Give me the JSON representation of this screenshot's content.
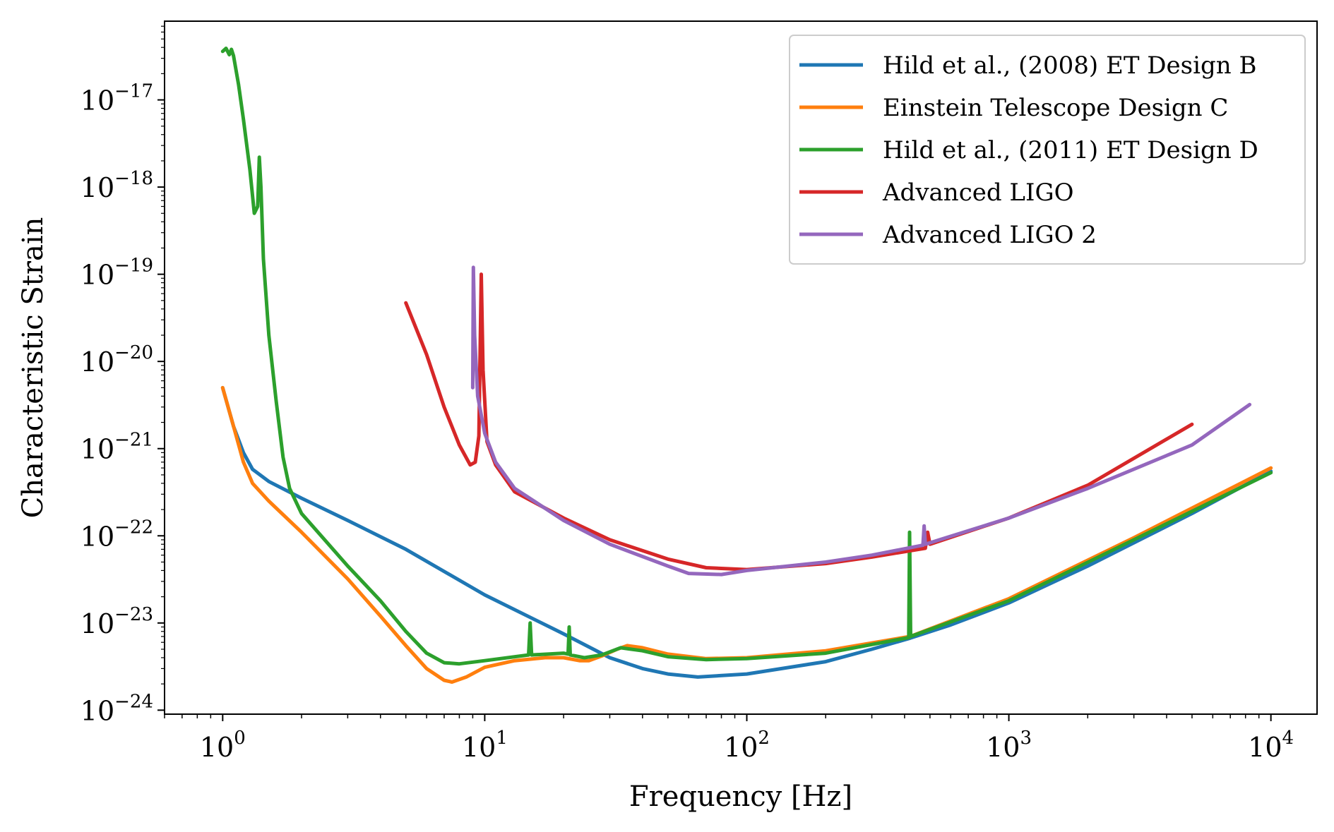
{
  "chart_data": {
    "type": "line",
    "title": "",
    "xlabel": "Frequency [Hz]",
    "ylabel": "Characteristic Strain",
    "xscale": "log",
    "yscale": "log",
    "xlim": [
      0.6,
      15000
    ],
    "ylim": [
      9e-25,
      8e-17
    ],
    "grid": false,
    "legend_position": "top-right",
    "x_ticks": [
      {
        "value": 1,
        "base": "10",
        "exp": "0"
      },
      {
        "value": 10,
        "base": "10",
        "exp": "1"
      },
      {
        "value": 100,
        "base": "10",
        "exp": "2"
      },
      {
        "value": 1000,
        "base": "10",
        "exp": "3"
      },
      {
        "value": 10000,
        "base": "10",
        "exp": "4"
      }
    ],
    "y_ticks": [
      {
        "value": 1e-24,
        "base": "10",
        "exp": "−24"
      },
      {
        "value": 1e-23,
        "base": "10",
        "exp": "−23"
      },
      {
        "value": 1e-22,
        "base": "10",
        "exp": "−22"
      },
      {
        "value": 1e-21,
        "base": "10",
        "exp": "−21"
      },
      {
        "value": 1e-20,
        "base": "10",
        "exp": "−20"
      },
      {
        "value": 1e-19,
        "base": "10",
        "exp": "−19"
      },
      {
        "value": 1e-18,
        "base": "10",
        "exp": "−18"
      },
      {
        "value": 1e-17,
        "base": "10",
        "exp": "−17"
      }
    ],
    "series": [
      {
        "name": "Hild et al., (2008) ET Design B",
        "color": "#1f77b4",
        "points": [
          [
            1.0,
            5e-21
          ],
          [
            1.1,
            1.8e-21
          ],
          [
            1.2,
            9e-22
          ],
          [
            1.3,
            5.8e-22
          ],
          [
            1.5,
            4.2e-22
          ],
          [
            2,
            2.7e-22
          ],
          [
            3,
            1.5e-22
          ],
          [
            5,
            7e-23
          ],
          [
            10,
            2.1e-23
          ],
          [
            20,
            7.5e-24
          ],
          [
            30,
            4e-24
          ],
          [
            40,
            3e-24
          ],
          [
            50,
            2.6e-24
          ],
          [
            65,
            2.4e-24
          ],
          [
            100,
            2.6e-24
          ],
          [
            200,
            3.6e-24
          ],
          [
            300,
            5e-24
          ],
          [
            420,
            6.7e-24
          ],
          [
            600,
            9.5e-24
          ],
          [
            1000,
            1.7e-23
          ],
          [
            2000,
            4.5e-23
          ],
          [
            5000,
            1.8e-22
          ],
          [
            10000,
            5.5e-22
          ]
        ]
      },
      {
        "name": "Einstein Telescope Design C",
        "color": "#ff7f0e",
        "points": [
          [
            1.0,
            5e-21
          ],
          [
            1.1,
            1.8e-21
          ],
          [
            1.2,
            7e-22
          ],
          [
            1.3,
            4e-22
          ],
          [
            1.5,
            2.5e-22
          ],
          [
            2,
            1.1e-22
          ],
          [
            3,
            3.2e-23
          ],
          [
            4,
            1.2e-23
          ],
          [
            5,
            5.5e-24
          ],
          [
            6,
            3e-24
          ],
          [
            7,
            2.2e-24
          ],
          [
            7.5,
            2.1e-24
          ],
          [
            8.5,
            2.4e-24
          ],
          [
            10,
            3.1e-24
          ],
          [
            13,
            3.7e-24
          ],
          [
            17,
            4e-24
          ],
          [
            20,
            4e-24
          ],
          [
            23,
            3.7e-24
          ],
          [
            25,
            3.7e-24
          ],
          [
            28,
            4.2e-24
          ],
          [
            32,
            5e-24
          ],
          [
            35,
            5.5e-24
          ],
          [
            40,
            5.2e-24
          ],
          [
            50,
            4.4e-24
          ],
          [
            70,
            3.9e-24
          ],
          [
            100,
            4e-24
          ],
          [
            200,
            4.8e-24
          ],
          [
            420,
            7e-24
          ],
          [
            1000,
            1.9e-23
          ],
          [
            3000,
            9.5e-23
          ],
          [
            10000,
            6e-22
          ]
        ]
      },
      {
        "name": "Hild et al., (2011) ET Design D",
        "color": "#2ca02c",
        "points": [
          [
            1.0,
            3.6e-17
          ],
          [
            1.03,
            3.9e-17
          ],
          [
            1.06,
            3.3e-17
          ],
          [
            1.08,
            3.8e-17
          ],
          [
            1.1,
            3.2e-17
          ],
          [
            1.15,
            1.5e-17
          ],
          [
            1.2,
            6e-18
          ],
          [
            1.27,
            1.6e-18
          ],
          [
            1.32,
            5e-19
          ],
          [
            1.36,
            6e-19
          ],
          [
            1.38,
            2.2e-18
          ],
          [
            1.4,
            1e-18
          ],
          [
            1.43,
            1.5e-19
          ],
          [
            1.5,
            2e-20
          ],
          [
            1.6,
            3.5e-21
          ],
          [
            1.7,
            8e-22
          ],
          [
            1.8,
            3.5e-22
          ],
          [
            2,
            1.8e-22
          ],
          [
            3,
            4.5e-23
          ],
          [
            4,
            1.8e-23
          ],
          [
            5,
            8e-24
          ],
          [
            6,
            4.5e-24
          ],
          [
            7,
            3.5e-24
          ],
          [
            8,
            3.4e-24
          ],
          [
            10,
            3.7e-24
          ],
          [
            14.7,
            4.3e-24
          ],
          [
            14.9,
            1e-23
          ],
          [
            15.1,
            4.3e-24
          ],
          [
            20,
            4.5e-24
          ],
          [
            20.8,
            4.4e-24
          ],
          [
            21,
            9e-24
          ],
          [
            21.2,
            4.3e-24
          ],
          [
            24,
            4e-24
          ],
          [
            28,
            4.3e-24
          ],
          [
            33,
            5.2e-24
          ],
          [
            40,
            4.8e-24
          ],
          [
            50,
            4.1e-24
          ],
          [
            70,
            3.8e-24
          ],
          [
            100,
            3.9e-24
          ],
          [
            200,
            4.5e-24
          ],
          [
            415,
            6.8e-24
          ],
          [
            418,
            1.1e-22
          ],
          [
            422,
            7e-24
          ],
          [
            1000,
            1.8e-23
          ],
          [
            3000,
            9e-23
          ],
          [
            10000,
            5.3e-22
          ]
        ]
      },
      {
        "name": "Advanced LIGO",
        "color": "#d62728",
        "points": [
          [
            5,
            4.7e-20
          ],
          [
            6,
            1.2e-20
          ],
          [
            7,
            3e-21
          ],
          [
            8,
            1.1e-21
          ],
          [
            8.8,
            6.5e-22
          ],
          [
            9.2,
            7e-22
          ],
          [
            9.5,
            1.4e-21
          ],
          [
            9.7,
            1e-19
          ],
          [
            9.85,
            8e-21
          ],
          [
            10.2,
            1.2e-21
          ],
          [
            11,
            6.5e-22
          ],
          [
            13,
            3.2e-22
          ],
          [
            20,
            1.6e-22
          ],
          [
            30,
            9e-23
          ],
          [
            50,
            5.4e-23
          ],
          [
            70,
            4.3e-23
          ],
          [
            100,
            4.1e-23
          ],
          [
            200,
            4.8e-23
          ],
          [
            300,
            5.7e-23
          ],
          [
            480,
            7.2e-23
          ],
          [
            490,
            1.1e-22
          ],
          [
            500,
            8e-23
          ],
          [
            1000,
            1.6e-22
          ],
          [
            2000,
            3.8e-22
          ],
          [
            5000,
            1.9e-21
          ]
        ]
      },
      {
        "name": "Advanced LIGO 2",
        "color": "#9467bd",
        "points": [
          [
            9.0,
            5e-21
          ],
          [
            9.05,
            1.2e-19
          ],
          [
            9.15,
            2e-20
          ],
          [
            9.4,
            4e-21
          ],
          [
            10,
            1.5e-21
          ],
          [
            11,
            7e-22
          ],
          [
            13,
            3.5e-22
          ],
          [
            20,
            1.5e-22
          ],
          [
            30,
            8e-23
          ],
          [
            50,
            4.5e-23
          ],
          [
            60,
            3.7e-23
          ],
          [
            80,
            3.6e-23
          ],
          [
            100,
            4e-23
          ],
          [
            200,
            5e-23
          ],
          [
            300,
            6e-23
          ],
          [
            470,
            7.8e-23
          ],
          [
            475,
            1.3e-22
          ],
          [
            480,
            8e-23
          ],
          [
            1000,
            1.6e-22
          ],
          [
            2000,
            3.5e-22
          ],
          [
            5000,
            1.1e-21
          ],
          [
            8300,
            3.2e-21
          ]
        ]
      }
    ]
  }
}
